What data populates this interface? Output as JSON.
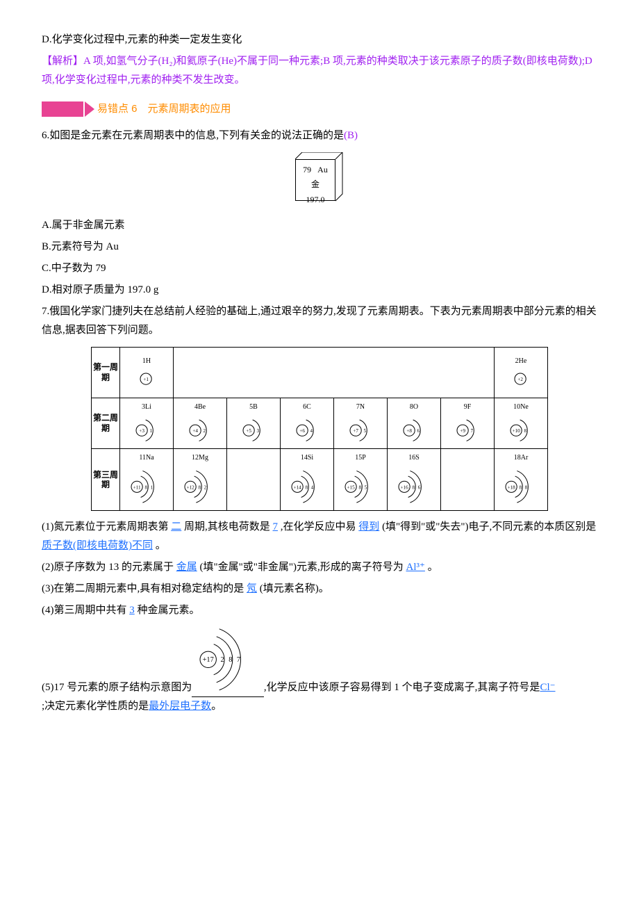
{
  "q5_optD": "D.化学变化过程中,元素的种类一定发生变化",
  "q5_analysis_label": "【解析】",
  "q5_analysis_text": "A 项,如氢气分子(H₂)和氦原子(He)不属于同一种元素;B 项,元素的种类取决于该元素原子的质子数(即核电荷数);D 项,化学变化过程中,元素的种类不发生改变。",
  "section6_title": "易错点 6　元素周期表的应用",
  "q6_stem": "6.如图是金元素在元素周期表中的信息,下列有关金的说法正确的是",
  "q6_answer": "(B)",
  "au": {
    "num": "79",
    "sym": "Au",
    "name": "金",
    "mass": "197.0"
  },
  "q6_A": "A.属于非金属元素",
  "q6_B": "B.元素符号为 Au",
  "q6_C": "C.中子数为 79",
  "q6_D": "D.相对原子质量为 197.0 g",
  "q7_stem": "7.俄国化学家门捷列夫在总结前人经验的基础上,通过艰辛的努力,发现了元素周期表。下表为元素周期表中部分元素的相关信息,据表回答下列问题。",
  "ptable": {
    "row_headers": [
      "第一周期",
      "第二周期",
      "第三周期"
    ],
    "cells": {
      "r1c1": {
        "label": "1H",
        "n": 1,
        "shells": []
      },
      "r1c8": {
        "label": "2He",
        "n": 2,
        "shells": []
      },
      "r2c1": {
        "label": "3Li",
        "n": 3,
        "shells": [
          1
        ]
      },
      "r2c2": {
        "label": "4Be",
        "n": 4,
        "shells": [
          2
        ]
      },
      "r2c3": {
        "label": "5B",
        "n": 5,
        "shells": [
          3
        ]
      },
      "r2c4": {
        "label": "6C",
        "n": 6,
        "shells": [
          4
        ]
      },
      "r2c5": {
        "label": "7N",
        "n": 7,
        "shells": [
          5
        ]
      },
      "r2c6": {
        "label": "8O",
        "n": 8,
        "shells": [
          6
        ]
      },
      "r2c7": {
        "label": "9F",
        "n": 9,
        "shells": [
          7
        ]
      },
      "r2c8": {
        "label": "10Ne",
        "n": 10,
        "shells": [
          8
        ]
      },
      "r3c1": {
        "label": "11Na",
        "n": 11,
        "shells": [
          8,
          1
        ]
      },
      "r3c2": {
        "label": "12Mg",
        "n": 12,
        "shells": [
          8,
          2
        ]
      },
      "r3c4": {
        "label": "14Si",
        "n": 14,
        "shells": [
          8,
          4
        ]
      },
      "r3c5": {
        "label": "15P",
        "n": 15,
        "shells": [
          8,
          5
        ]
      },
      "r3c6": {
        "label": "16S",
        "n": 16,
        "shells": [
          8,
          6
        ]
      },
      "r3c8": {
        "label": "18Ar",
        "n": 18,
        "shells": [
          8,
          8
        ]
      }
    }
  },
  "q7_1_a": "(1)氮元素位于元素周期表第",
  "q7_1_b": "二",
  "q7_1_c": "周期,其核电荷数是",
  "q7_1_d": "7",
  "q7_1_e": ",在化学反应中易",
  "q7_1_f": "得到",
  "q7_1_g": "(填\"得到\"或\"失去\")电子,不同元素的本质区别是",
  "q7_1_h": "质子数(即核电荷数)不同",
  "q7_1_i": "。",
  "q7_2_a": "(2)原子序数为 13 的元素属于",
  "q7_2_b": "金属",
  "q7_2_c": "(填\"金属\"或\"非金属\")元素,形成的离子符号为",
  "q7_2_d": "Al³⁺",
  "q7_2_e": "。",
  "q7_3_a": "(3)在第二周期元素中,具有相对稳定结构的是",
  "q7_3_b": "氖",
  "q7_3_c": "(填元素名称)。",
  "q7_4_a": "(4)第三周期中共有",
  "q7_4_b": "3",
  "q7_4_c": "种金属元素。",
  "q7_5_a": "(5)17 号元素的原子结构示意图为",
  "q7_5_mid": ",化学反应中该原子容易得到 1 个电子变成离子,其离子符号是",
  "q7_5_b": "Cl⁻",
  "q7_5_c": ";决定元素化学性质的是",
  "q7_5_d": "最外层电子数",
  "q7_5_e": "。",
  "cl_atom": {
    "n": 17,
    "shells": [
      2,
      8,
      7
    ]
  }
}
